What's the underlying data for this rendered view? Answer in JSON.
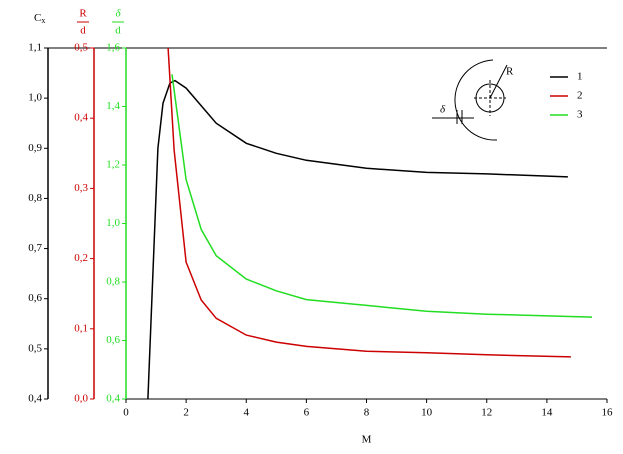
{
  "chart_data": {
    "type": "line",
    "xlabel": "M",
    "ylabel": "C",
    "ylabel_sub": "x",
    "y2label": {
      "num": "R",
      "den": "d"
    },
    "y3label": {
      "num": "δ",
      "den": "d"
    },
    "annotations": [
      "R",
      "δ"
    ],
    "legend": "top-right",
    "xlim": [
      0,
      16
    ],
    "xticks": [
      0,
      2,
      4,
      6,
      8,
      10,
      12,
      14,
      16
    ],
    "ylim": [
      0.4,
      1.1
    ],
    "yticks": [
      {
        "value": 0.4,
        "label": "0,4"
      },
      {
        "value": 0.5,
        "label": "0,5"
      },
      {
        "value": 0.6,
        "label": "0,6"
      },
      {
        "value": 0.7,
        "label": "0,7"
      },
      {
        "value": 0.8,
        "label": "0,8"
      },
      {
        "value": 0.9,
        "label": "0,9"
      },
      {
        "value": 1.0,
        "label": "1,0"
      },
      {
        "value": 1.1,
        "label": "1,1"
      }
    ],
    "y2lim": [
      0,
      0.5
    ],
    "y2ticks": [
      {
        "value": 0,
        "label": "0,0"
      },
      {
        "value": 0.1,
        "label": "0,1"
      },
      {
        "value": 0.2,
        "label": "0,2"
      },
      {
        "value": 0.3,
        "label": "0,3"
      },
      {
        "value": 0.4,
        "label": "0,4"
      },
      {
        "value": 0.5,
        "label": "0,5"
      }
    ],
    "y3lim": [
      0.4,
      1.6
    ],
    "y3ticks": [
      {
        "value": 0.4,
        "label": "0,4"
      },
      {
        "value": 0.6,
        "label": "0,6"
      },
      {
        "value": 0.8,
        "label": "0,8"
      },
      {
        "value": 1.0,
        "label": "1,0"
      },
      {
        "value": 1.2,
        "label": "1,2"
      },
      {
        "value": 1.4,
        "label": "1,4"
      },
      {
        "value": 1.6,
        "label": "1,6"
      }
    ],
    "series": [
      {
        "name": "1",
        "color": "#000000",
        "axis": "y",
        "x": [
          0.73,
          1.06,
          1.23,
          1.46,
          1.63,
          2,
          3,
          4,
          5,
          6,
          8,
          10,
          12,
          14.7
        ],
        "values": [
          0.4,
          0.9,
          0.99,
          1.03,
          1.035,
          1.02,
          0.95,
          0.91,
          0.89,
          0.876,
          0.86,
          0.852,
          0.849,
          0.843
        ]
      },
      {
        "name": "2",
        "color": "#cc0000",
        "axis": "y2",
        "x": [
          1.4,
          1.6,
          2,
          2.5,
          3,
          4,
          5,
          6,
          8,
          10,
          12,
          14.8
        ],
        "values": [
          0.5,
          0.355,
          0.195,
          0.141,
          0.115,
          0.091,
          0.081,
          0.075,
          0.068,
          0.066,
          0.063,
          0.06
        ]
      },
      {
        "name": "3",
        "color": "#22dd22",
        "axis": "y3",
        "x": [
          1.53,
          2,
          2.5,
          3,
          4,
          5,
          6,
          8,
          10,
          12,
          15.5
        ],
        "values": [
          1.51,
          1.15,
          0.98,
          0.89,
          0.81,
          0.77,
          0.74,
          0.72,
          0.7,
          0.69,
          0.68
        ]
      }
    ]
  }
}
